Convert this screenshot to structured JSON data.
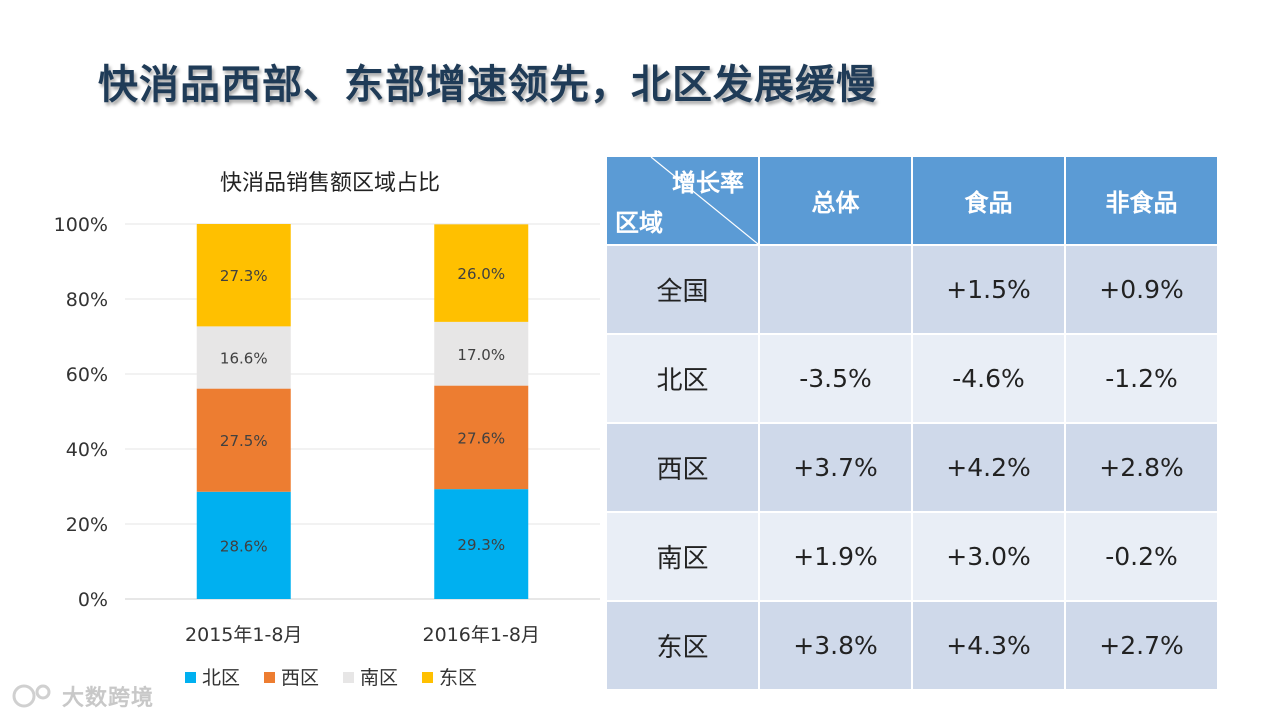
{
  "page_title": "快消品西部、东部增速领先，北区发展缓慢",
  "chart_data": {
    "type": "bar",
    "stacked": true,
    "title": "快消品销售额区域占比",
    "categories": [
      "2015年1-8月",
      "2016年1-8月"
    ],
    "series": [
      {
        "name": "北区",
        "values": [
          28.6,
          29.3
        ],
        "labels": [
          "28.6%",
          "29.3%"
        ],
        "color": "#00b0f0"
      },
      {
        "name": "西区",
        "values": [
          27.5,
          27.6
        ],
        "labels": [
          "27.5%",
          "27.6%"
        ],
        "color": "#ed7d31"
      },
      {
        "name": "南区",
        "values": [
          16.6,
          17.0
        ],
        "labels": [
          "16.6%",
          "17.0%"
        ],
        "color": "#e7e6e6"
      },
      {
        "name": "东区",
        "values": [
          27.3,
          26.0
        ],
        "labels": [
          "27.3%",
          "26.0%"
        ],
        "color": "#ffc000"
      }
    ],
    "y_ticks": [
      "0%",
      "20%",
      "40%",
      "60%",
      "80%",
      "100%"
    ],
    "ylim": [
      0,
      100
    ],
    "xlabel": "",
    "ylabel": "",
    "grid": true,
    "legend": "bottom"
  },
  "table": {
    "corner_top": "增长率",
    "corner_bottom": "区域",
    "headers": [
      "总体",
      "食品",
      "非食品"
    ],
    "rows": [
      {
        "region": "全国",
        "total": "",
        "food": "+1.5%",
        "nonfood": "+0.9%"
      },
      {
        "region": "北区",
        "total": "-3.5%",
        "food": "-4.6%",
        "nonfood": "-1.2%"
      },
      {
        "region": "西区",
        "total": "+3.7%",
        "food": "+4.2%",
        "nonfood": "+2.8%"
      },
      {
        "region": "南区",
        "total": "+1.9%",
        "food": "+3.0%",
        "nonfood": "-0.2%"
      },
      {
        "region": "东区",
        "total": "+3.8%",
        "food": "+4.3%",
        "nonfood": "+2.7%"
      }
    ]
  },
  "watermark": "大数跨境"
}
